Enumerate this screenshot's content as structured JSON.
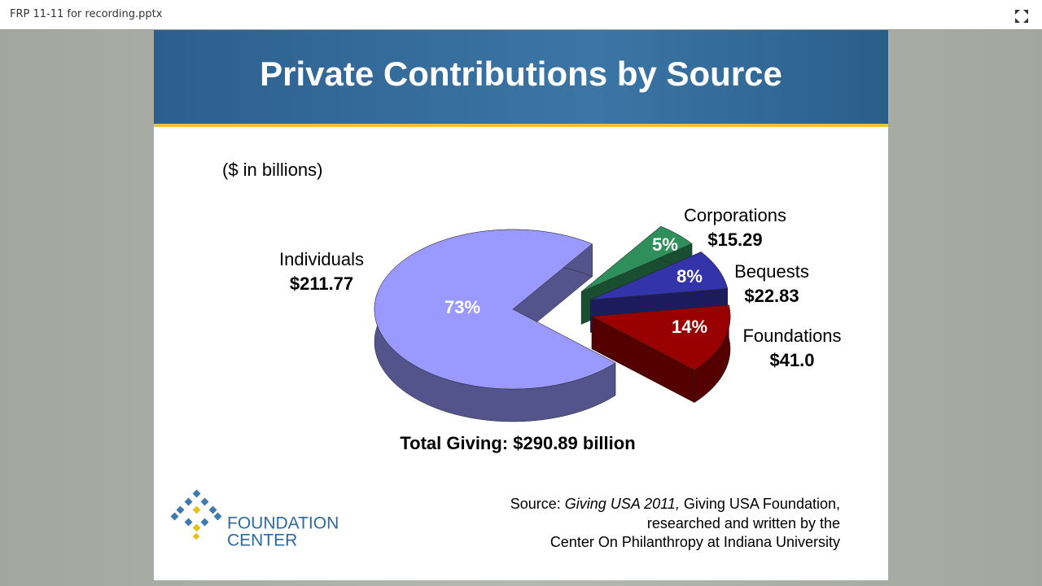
{
  "window": {
    "title": "FRP 11-11 for recording.pptx"
  },
  "chart_data": {
    "type": "pie",
    "title": "Private Contributions by Source",
    "subtitle": "($ in billions)",
    "categories": [
      "Individuals",
      "Corporations",
      "Bequests",
      "Foundations"
    ],
    "values": [
      73,
      5,
      8,
      14
    ],
    "value_labels": [
      "73%",
      "5%",
      "8%",
      "14%"
    ],
    "amount_labels": [
      "$211.77",
      "$15.29",
      "$22.83",
      "$41.0"
    ],
    "colors": [
      "#9999ff",
      "#2f8f5a",
      "#3333aa",
      "#990000"
    ],
    "annotation": "Total Giving: $290.89 billion"
  },
  "source": {
    "prefix": "Source: ",
    "title": "Giving USA 2011,",
    "rest": " Giving USA Foundation,",
    "line2": "researched and written by the",
    "line3": "Center On Philanthropy at Indiana University"
  },
  "logo": {
    "line1": "FOUNDATION",
    "line2": "CENTER"
  }
}
